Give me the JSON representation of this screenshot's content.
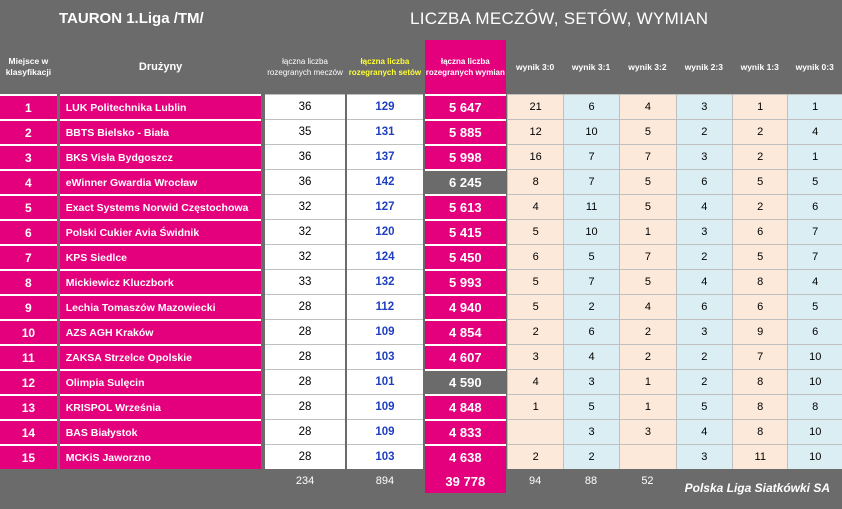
{
  "title_left": "TAURON 1.Liga /TM/",
  "title_right": "LICZBA MECZÓW, SETÓW, WYMIAN",
  "headers": {
    "place": "Miejsce w klasyfikacji",
    "teams": "Drużyny",
    "matches": "łączna liczba rozegranych meczów",
    "sets": "łączna liczba rozegranych setów",
    "rallies": "łączna liczba rozegranych wymian",
    "w30": "wynik 3:0",
    "w31": "wynik 3:1",
    "w32": "wynik 3:2",
    "w23": "wynik 2:3",
    "w13": "wynik 1:3",
    "w03": "wynik 0:3"
  },
  "rows": [
    {
      "pos": "1",
      "team": "LUK Politechnika Lublin",
      "matches": "36",
      "sets": "129",
      "rallies": "5 647",
      "dark": false,
      "r": [
        "21",
        "6",
        "4",
        "3",
        "1",
        "1"
      ]
    },
    {
      "pos": "2",
      "team": "BBTS Bielsko - Biała",
      "matches": "35",
      "sets": "131",
      "rallies": "5 885",
      "dark": false,
      "r": [
        "12",
        "10",
        "5",
        "2",
        "2",
        "4"
      ]
    },
    {
      "pos": "3",
      "team": "BKS Visła Bydgoszcz",
      "matches": "36",
      "sets": "137",
      "rallies": "5 998",
      "dark": false,
      "r": [
        "16",
        "7",
        "7",
        "3",
        "2",
        "1"
      ]
    },
    {
      "pos": "4",
      "team": "eWinner Gwardia Wrocław",
      "matches": "36",
      "sets": "142",
      "rallies": "6 245",
      "dark": true,
      "r": [
        "8",
        "7",
        "5",
        "6",
        "5",
        "5"
      ]
    },
    {
      "pos": "5",
      "team": "Exact Systems Norwid Częstochowa",
      "matches": "32",
      "sets": "127",
      "rallies": "5 613",
      "dark": false,
      "r": [
        "4",
        "11",
        "5",
        "4",
        "2",
        "6"
      ]
    },
    {
      "pos": "6",
      "team": "Polski Cukier Avia Świdnik",
      "matches": "32",
      "sets": "120",
      "rallies": "5 415",
      "dark": false,
      "r": [
        "5",
        "10",
        "1",
        "3",
        "6",
        "7"
      ]
    },
    {
      "pos": "7",
      "team": "KPS Siedlce",
      "matches": "32",
      "sets": "124",
      "rallies": "5 450",
      "dark": false,
      "r": [
        "6",
        "5",
        "7",
        "2",
        "5",
        "7"
      ]
    },
    {
      "pos": "8",
      "team": "Mickiewicz Kluczbork",
      "matches": "33",
      "sets": "132",
      "rallies": "5 993",
      "dark": false,
      "r": [
        "5",
        "7",
        "5",
        "4",
        "8",
        "4"
      ]
    },
    {
      "pos": "9",
      "team": "Lechia Tomaszów Mazowiecki",
      "matches": "28",
      "sets": "112",
      "rallies": "4 940",
      "dark": false,
      "r": [
        "5",
        "2",
        "4",
        "6",
        "6",
        "5"
      ]
    },
    {
      "pos": "10",
      "team": "AZS AGH Kraków",
      "matches": "28",
      "sets": "109",
      "rallies": "4 854",
      "dark": false,
      "r": [
        "2",
        "6",
        "2",
        "3",
        "9",
        "6"
      ]
    },
    {
      "pos": "11",
      "team": "ZAKSA Strzelce Opolskie",
      "matches": "28",
      "sets": "103",
      "rallies": "4 607",
      "dark": false,
      "r": [
        "3",
        "4",
        "2",
        "2",
        "7",
        "10"
      ]
    },
    {
      "pos": "12",
      "team": "Olimpia Sulęcin",
      "matches": "28",
      "sets": "101",
      "rallies": "4 590",
      "dark": true,
      "r": [
        "4",
        "3",
        "1",
        "2",
        "8",
        "10"
      ]
    },
    {
      "pos": "13",
      "team": "KRISPOL Września",
      "matches": "28",
      "sets": "109",
      "rallies": "4 848",
      "dark": false,
      "r": [
        "1",
        "5",
        "1",
        "5",
        "8",
        "8"
      ]
    },
    {
      "pos": "14",
      "team": "BAS Białystok",
      "matches": "28",
      "sets": "109",
      "rallies": "4 833",
      "dark": false,
      "r": [
        "",
        "3",
        "3",
        "4",
        "8",
        "10"
      ]
    },
    {
      "pos": "15",
      "team": "MCKiS Jaworzno",
      "matches": "28",
      "sets": "103",
      "rallies": "4 638",
      "dark": false,
      "r": [
        "2",
        "2",
        "",
        "3",
        "11",
        "10"
      ]
    }
  ],
  "totals": {
    "matches": "234",
    "sets": "894",
    "rallies": "39 778",
    "w30": "94",
    "w31": "88",
    "w32": "52"
  },
  "footer": "Polska Liga Siatkówki SA",
  "colors": {
    "magenta": "#e4007c",
    "gray": "#6b6b6b",
    "peach": "#fde9d9",
    "lightblue": "#dbeef4",
    "sets_blue": "#1f3fbf",
    "header_yellow": "#ffff33"
  }
}
